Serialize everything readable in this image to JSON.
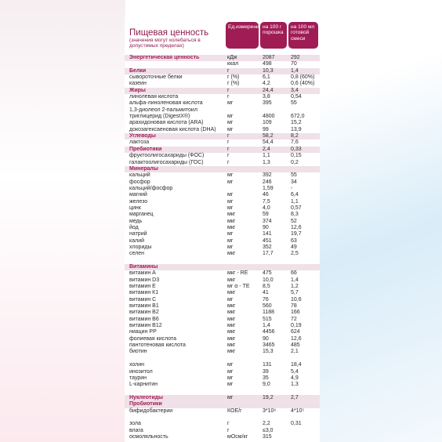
{
  "header": {
    "title": "Пищевая ценность",
    "subtitle": "(значения могут колебаться в допустимых пределах)",
    "col_unit": "Ед.измерения",
    "col_100g": "на 100 г порошка",
    "col_100ml": "на 100 мл готовой смеси"
  },
  "rows": [
    {
      "n": "Энергетическая ценность",
      "u": "кДж",
      "a": "2087",
      "b": "292",
      "h": true
    },
    {
      "n": "",
      "u": "ккал",
      "a": "498",
      "b": "70"
    },
    {
      "n": "Белки",
      "u": "г",
      "a": "10,3",
      "b": "1,4",
      "h": true
    },
    {
      "n": "сывороточные белки",
      "u": "г (%)",
      "a": "6,1",
      "b": "0,8 (60%)"
    },
    {
      "n": "казеин",
      "u": "г (%)",
      "a": "4,2",
      "b": "0,6 (40%)"
    },
    {
      "n": "Жиры",
      "u": "г",
      "a": "24,4",
      "b": "3,4",
      "h": true
    },
    {
      "n": "линолевая кислота",
      "u": "г",
      "a": "3,8",
      "b": "0,54"
    },
    {
      "n": "альфа-линоленовая кислота",
      "u": "мг",
      "a": "395",
      "b": "55"
    },
    {
      "n": "1,3-диолеол 2-пальмитоил",
      "u": "",
      "a": "",
      "b": ""
    },
    {
      "n": "триглицерид (DigestX®)",
      "u": "мг",
      "a": "4800",
      "b": "672,0"
    },
    {
      "n": "арахидоновая кислота (ARA)",
      "u": "мг",
      "a": "109",
      "b": "15,2"
    },
    {
      "n": "докозагексаеновая кислота (DHA)",
      "u": "мг",
      "a": "99",
      "b": "13,9"
    },
    {
      "n": "Углеводы",
      "u": "г",
      "a": "58,2",
      "b": "8,2",
      "h": true
    },
    {
      "n": "лактоза",
      "u": "г",
      "a": "54,4",
      "b": "7,6"
    },
    {
      "n": "Пребиотики",
      "u": "г",
      "a": "2,4",
      "b": "0,33",
      "h": true
    },
    {
      "n": "фруктоолигосахариды (ФОС)",
      "u": "г",
      "a": "1,1",
      "b": "0,15"
    },
    {
      "n": "галактоолигосахариды (ГОС)",
      "u": "г",
      "a": "1,3",
      "b": "0,2"
    },
    {
      "n": "Минералы",
      "u": "",
      "a": "",
      "b": "",
      "h": true
    },
    {
      "n": "кальций",
      "u": "мг",
      "a": "392",
      "b": "55"
    },
    {
      "n": "фосфор",
      "u": "мг",
      "a": "246",
      "b": "34"
    },
    {
      "n": "кальций/фосфор",
      "u": "",
      "a": "1,59",
      "b": "-"
    },
    {
      "n": "магний",
      "u": "мг",
      "a": "46",
      "b": "6,4"
    },
    {
      "n": "железо",
      "u": "мг",
      "a": "7,5",
      "b": "1,1"
    },
    {
      "n": "цинк",
      "u": "мг",
      "a": "4,0",
      "b": "0,57"
    },
    {
      "n": "марганец",
      "u": "мкг",
      "a": "59",
      "b": "8,3"
    },
    {
      "n": "медь",
      "u": "мкг",
      "a": "374",
      "b": "52"
    },
    {
      "n": "йод",
      "u": "мкг",
      "a": "90",
      "b": "12,6"
    },
    {
      "n": "натрий",
      "u": "мг",
      "a": "141",
      "b": "19,7"
    },
    {
      "n": "калий",
      "u": "мг",
      "a": "451",
      "b": "63"
    },
    {
      "n": "хлориды",
      "u": "мг",
      "a": "352",
      "b": "49"
    },
    {
      "n": "селен",
      "u": "мкг",
      "a": "17,7",
      "b": "2,5"
    },
    {
      "n": "",
      "u": "",
      "a": "",
      "b": "",
      "sp": true
    },
    {
      "n": "Витамины",
      "u": "",
      "a": "",
      "b": "",
      "h": true
    },
    {
      "n": "витамин А",
      "u": "мкг - RE",
      "a": "475",
      "b": "66"
    },
    {
      "n": "витамин D3",
      "u": "мкг",
      "a": "10,0",
      "b": "1,4"
    },
    {
      "n": "витамин Е",
      "u": "мг α - TE",
      "a": "8,5",
      "b": "1,2"
    },
    {
      "n": "витамин К1",
      "u": "мкг",
      "a": "41",
      "b": "5,7"
    },
    {
      "n": "витамин С",
      "u": "мг",
      "a": "76",
      "b": "10,6"
    },
    {
      "n": "витамин В1",
      "u": "мкг",
      "a": "560",
      "b": "78"
    },
    {
      "n": "витамин В2",
      "u": "мкг",
      "a": "1188",
      "b": "166"
    },
    {
      "n": "витамин В6",
      "u": "мкг",
      "a": "515",
      "b": "72"
    },
    {
      "n": "витамин В12",
      "u": "мкг",
      "a": "1,4",
      "b": "0,19"
    },
    {
      "n": "ниацин РР",
      "u": "мкг",
      "a": "4456",
      "b": "624"
    },
    {
      "n": "фолиевая кислота",
      "u": "мкг",
      "a": "90",
      "b": "12,6"
    },
    {
      "n": "пантотеновая кислота",
      "u": "мкг",
      "a": "3465",
      "b": "485"
    },
    {
      "n": "биотин",
      "u": "мкг",
      "a": "15,3",
      "b": "2,1"
    },
    {
      "n": "",
      "u": "",
      "a": "",
      "b": "",
      "sp": true
    },
    {
      "n": "холин",
      "u": "мг",
      "a": "131",
      "b": "18,4"
    },
    {
      "n": "инозитол",
      "u": "мг",
      "a": "39",
      "b": "5,4"
    },
    {
      "n": "таурин",
      "u": "мг",
      "a": "35",
      "b": "4,9"
    },
    {
      "n": "L-карнитин",
      "u": "мг",
      "a": "9,0",
      "b": "1,3"
    },
    {
      "n": "",
      "u": "",
      "a": "",
      "b": "",
      "sp": true
    },
    {
      "n": "Нуклеотиды",
      "u": "мг",
      "a": "19,2",
      "b": "2,7",
      "h": true
    },
    {
      "n": "Пробиотики",
      "u": "",
      "a": "",
      "b": "",
      "h": true
    },
    {
      "n": "бифидобактерии",
      "u": "КОЕ/г",
      "a": "3*10⁶",
      "b": "4*10⁵"
    },
    {
      "n": "",
      "u": "",
      "a": "",
      "b": "",
      "sp": true
    },
    {
      "n": "зола",
      "u": "г",
      "a": "2,2",
      "b": "0,31"
    },
    {
      "n": "влага",
      "u": "г",
      "a": "≤3,0",
      "b": ""
    },
    {
      "n": "осмоляльность",
      "u": "мОсм/кг",
      "a": "315",
      "b": ""
    }
  ]
}
